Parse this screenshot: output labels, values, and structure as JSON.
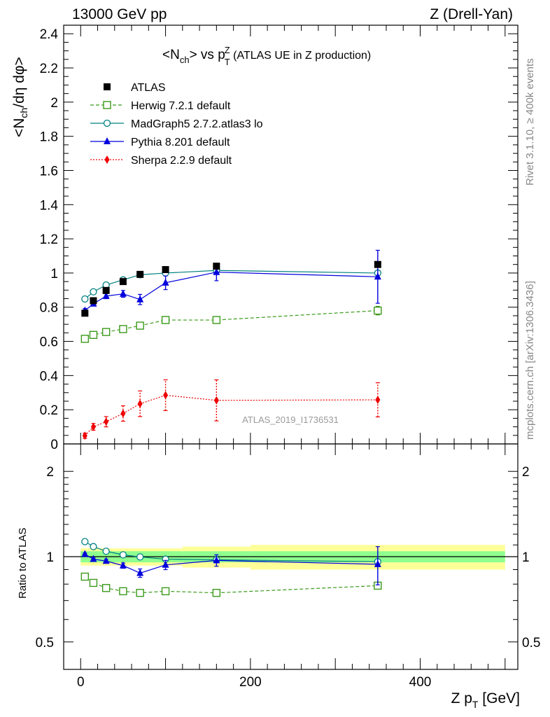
{
  "header": {
    "left": "13000 GeV pp",
    "right": "Z (Drell-Yan)"
  },
  "side_labels": {
    "top": "Rivet 3.1.10, ≥ 400k events",
    "bottom": "mcplots.cern.ch [arXiv:1306.3436]"
  },
  "plot_title": {
    "prefix": "<N",
    "sub1": "ch",
    "mid": "> vs p",
    "sub2": "T",
    "sup2": "Z",
    "suffix": " (ATLAS UE in Z production)"
  },
  "watermark": "ATLAS_2019_I1736531",
  "chart_data": [
    {
      "type": "line",
      "panel": "main",
      "ylabel": "<Nch/dη dφ>",
      "ylim": [
        0,
        2.45
      ],
      "xlim": [
        -20,
        515
      ],
      "yticks": [
        "0",
        "0.2",
        "0.4",
        "0.6",
        "0.8",
        "1",
        "1.2",
        "1.4",
        "1.6",
        "1.8",
        "2",
        "2.2",
        "2.4"
      ],
      "ytick_values": [
        0,
        0.2,
        0.4,
        0.6,
        0.8,
        1.0,
        1.2,
        1.4,
        1.6,
        1.8,
        2.0,
        2.2,
        2.4
      ],
      "legend_position": "top-left",
      "series": [
        {
          "name": "ATLAS",
          "color": "#000000",
          "marker": "square-filled",
          "line": "none",
          "x": [
            5,
            15,
            30,
            50,
            70,
            100,
            160,
            350
          ],
          "y": [
            0.765,
            0.838,
            0.898,
            0.95,
            0.992,
            1.02,
            1.04,
            1.05
          ]
        },
        {
          "name": "Herwig 7.2.1 default",
          "color": "#3a9a1a",
          "marker": "square-open",
          "line": "dashed",
          "x": [
            5,
            15,
            30,
            50,
            70,
            100,
            160,
            350
          ],
          "y": [
            0.615,
            0.638,
            0.655,
            0.672,
            0.692,
            0.725,
            0.725,
            0.78
          ],
          "err": [
            0.012,
            0.012,
            0.012,
            0.012,
            0.012,
            0.012,
            0.012,
            0.025
          ]
        },
        {
          "name": "MadGraph5 2.7.2.atlas3 lo",
          "color": "#008080",
          "marker": "circle-open",
          "line": "solid",
          "x": [
            5,
            15,
            30,
            50,
            70,
            100,
            160,
            350
          ],
          "y": [
            0.848,
            0.89,
            0.93,
            0.96,
            0.99,
            1.0,
            1.015,
            1.0
          ]
        },
        {
          "name": "Pythia 8.201 default",
          "color": "#0000dd",
          "marker": "triangle-filled",
          "line": "solid",
          "x": [
            5,
            15,
            30,
            50,
            70,
            100,
            160,
            350
          ],
          "y": [
            0.78,
            0.82,
            0.865,
            0.878,
            0.845,
            0.943,
            1.005,
            0.978
          ],
          "err": [
            0.012,
            0.012,
            0.015,
            0.02,
            0.03,
            0.04,
            0.05,
            0.155
          ]
        },
        {
          "name": "Sherpa 2.2.9 default",
          "color": "#ee0000",
          "marker": "diamond-filled",
          "line": "dotted",
          "x": [
            5,
            15,
            30,
            50,
            70,
            100,
            160,
            350
          ],
          "y": [
            0.048,
            0.1,
            0.13,
            0.178,
            0.235,
            0.285,
            0.255,
            0.258
          ],
          "err": [
            0.015,
            0.02,
            0.03,
            0.045,
            0.075,
            0.09,
            0.12,
            0.1
          ]
        }
      ]
    },
    {
      "type": "line",
      "panel": "ratio",
      "ylabel": "Ratio to ATLAS",
      "xlabel": "Z pT [GeV]",
      "log_y": true,
      "ylim": [
        0.4,
        2.5
      ],
      "xlim": [
        -20,
        515
      ],
      "xticks": [
        "0",
        "200",
        "400"
      ],
      "xtick_values": [
        0,
        200,
        400
      ],
      "yticks": [
        "0.5",
        "1",
        "2"
      ],
      "ytick_values": [
        0.5,
        1,
        2
      ],
      "bands": {
        "inner_color": "#8fff8f",
        "outer_color": "#ffff99",
        "bins": [
          {
            "x0": 0,
            "x1": 120,
            "inner": 0.045,
            "outer": 0.07
          },
          {
            "x0": 120,
            "x1": 200,
            "inner": 0.045,
            "outer": 0.085
          },
          {
            "x0": 200,
            "x1": 500,
            "inner": 0.045,
            "outer": 0.1
          }
        ]
      },
      "series": [
        {
          "name": "Herwig 7.2.1 default",
          "color": "#3a9a1a",
          "x": [
            5,
            15,
            30,
            50,
            70,
            100,
            160,
            350
          ],
          "y": [
            0.85,
            0.808,
            0.775,
            0.755,
            0.745,
            0.755,
            0.745,
            0.79
          ],
          "err": [
            0.01,
            0.01,
            0.01,
            0.01,
            0.01,
            0.01,
            0.01,
            0.02
          ]
        },
        {
          "name": "MadGraph5 2.7.2.atlas3 lo",
          "color": "#008080",
          "x": [
            5,
            15,
            30,
            50,
            70,
            100,
            160,
            350
          ],
          "y": [
            1.13,
            1.085,
            1.045,
            1.015,
            0.998,
            0.98,
            0.975,
            0.96
          ]
        },
        {
          "name": "Pythia 8.201 default",
          "color": "#0000dd",
          "x": [
            5,
            15,
            30,
            50,
            70,
            100,
            160,
            350
          ],
          "y": [
            1.02,
            0.98,
            0.965,
            0.93,
            0.875,
            0.935,
            0.97,
            0.94
          ],
          "err": [
            0.01,
            0.01,
            0.015,
            0.02,
            0.03,
            0.035,
            0.045,
            0.145
          ]
        }
      ]
    }
  ]
}
